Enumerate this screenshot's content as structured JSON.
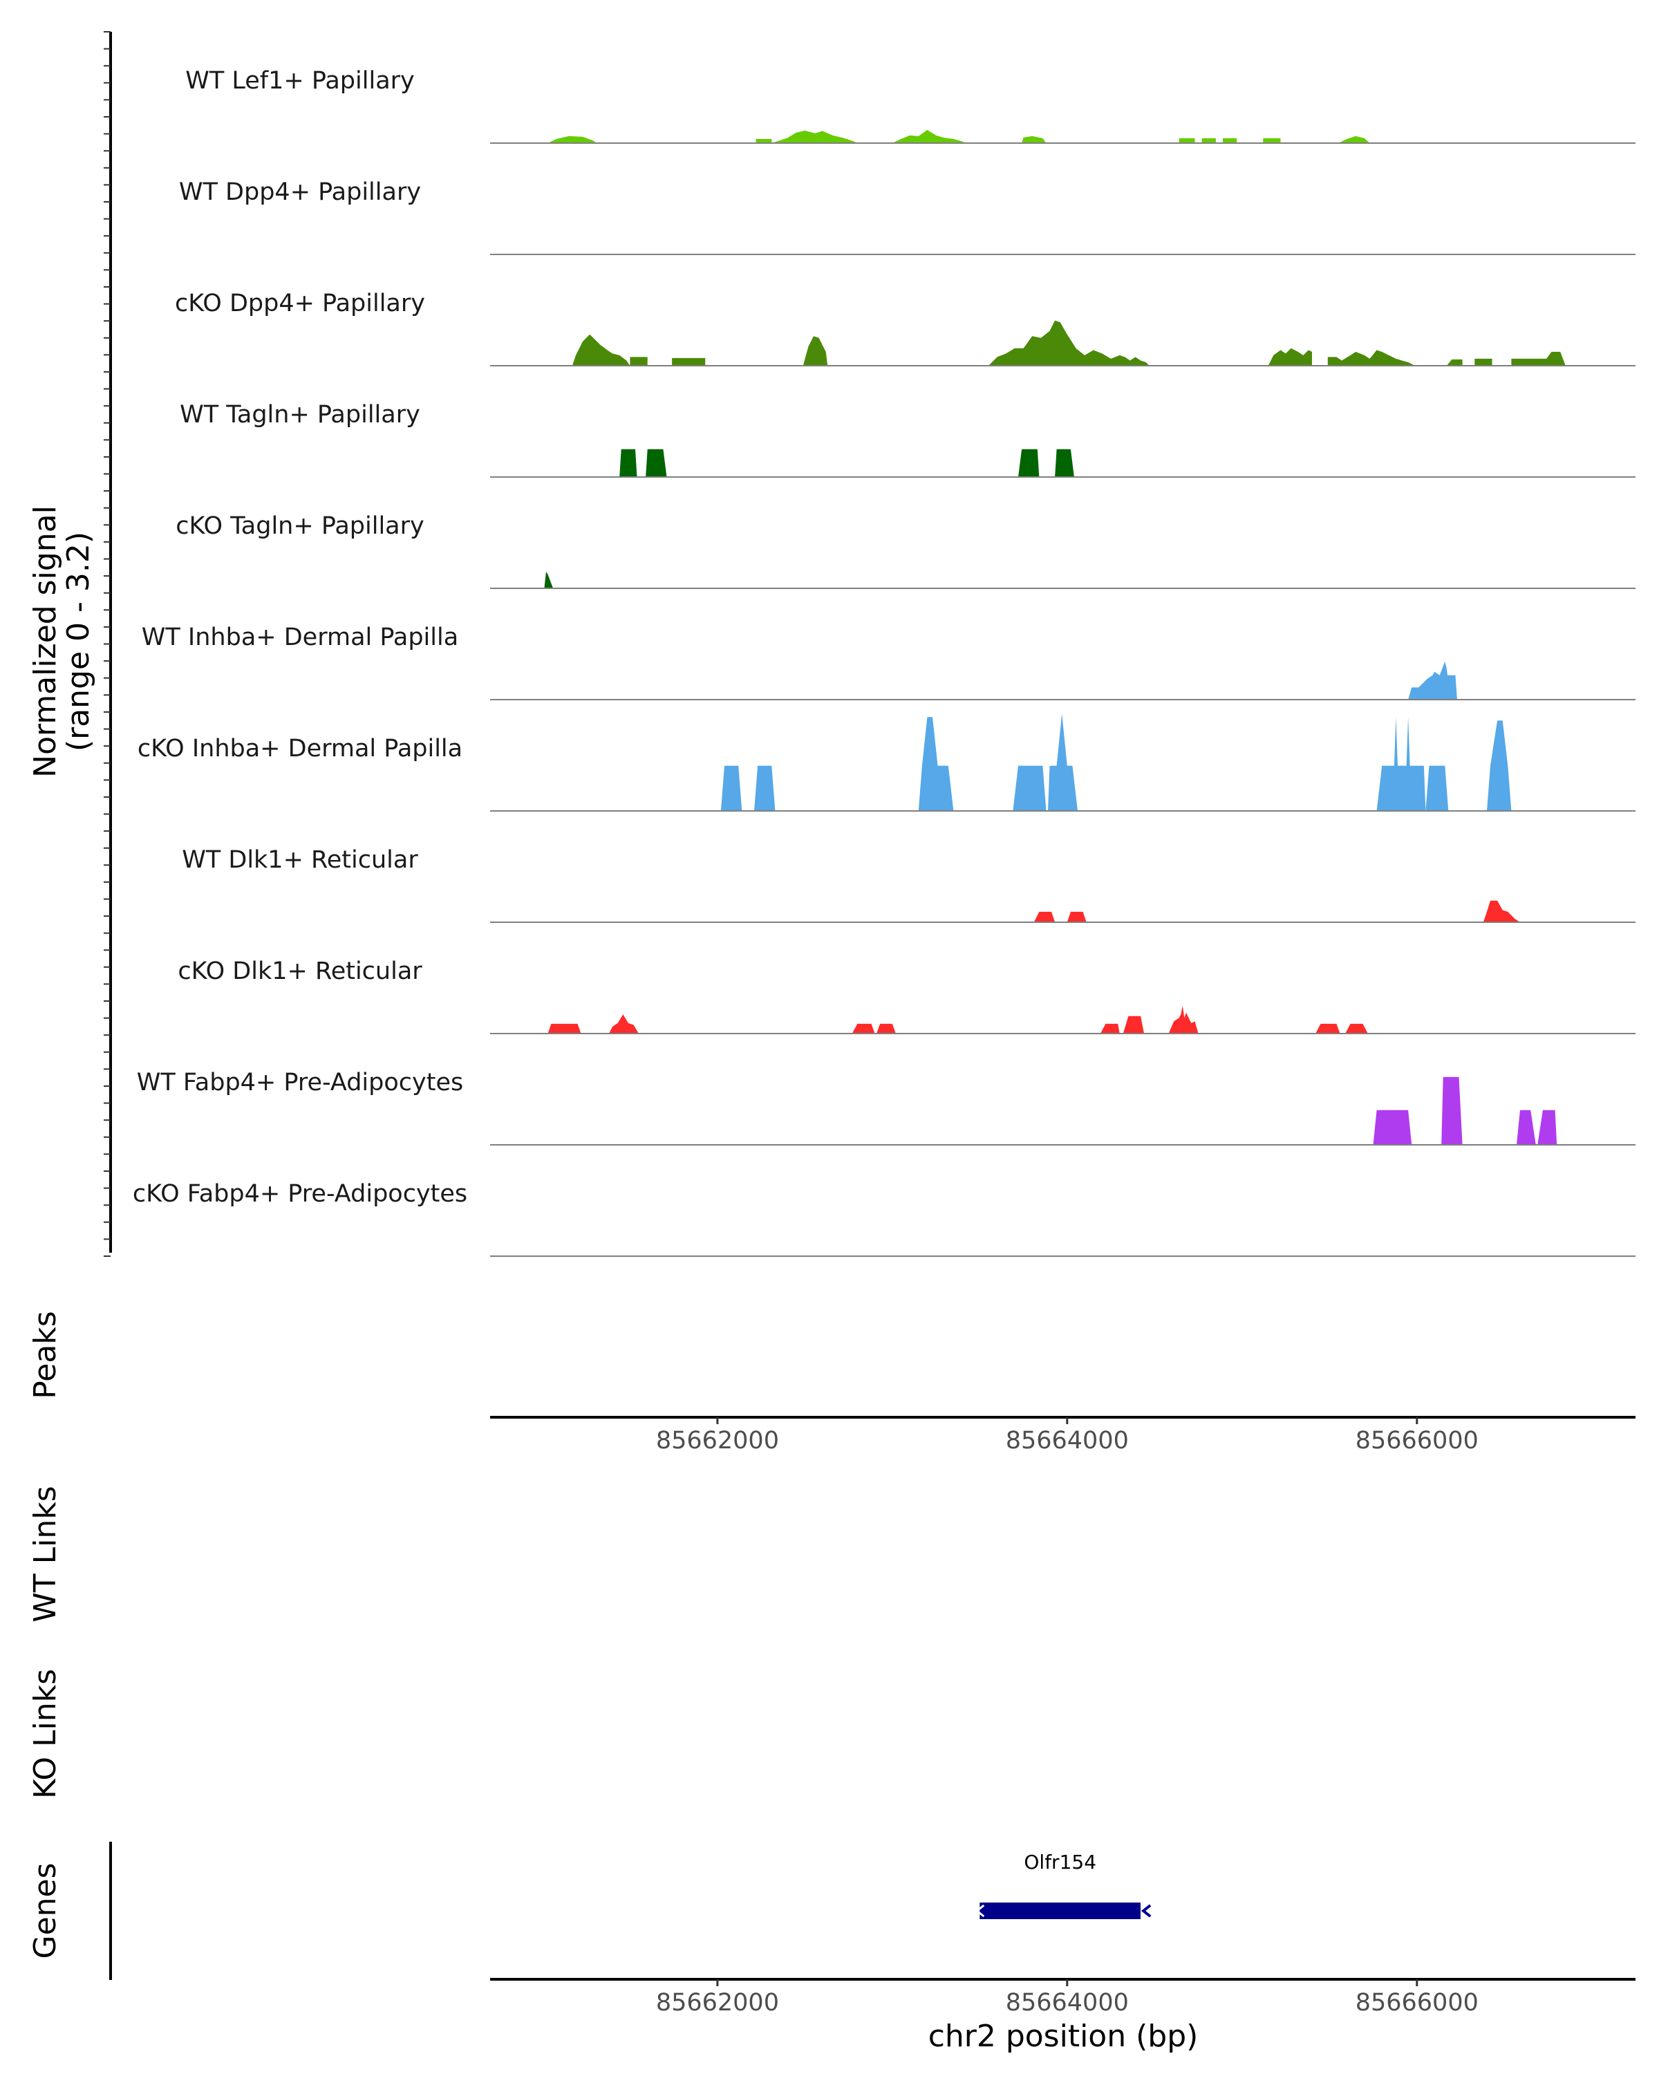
{
  "chart_data": {
    "type": "area",
    "ylabel_line1": "Normalized signal",
    "ylabel_line2": "(range 0 - 3.2)",
    "ylim": [
      0,
      3.2
    ],
    "xlim": [
      85660700,
      85667250
    ],
    "xlabel": "chr2 position (bp)",
    "x_ticks": [
      "85662000",
      "85664000",
      "85666000"
    ],
    "x_tick_values": [
      85662000,
      85664000,
      85666000
    ],
    "tracks": [
      {
        "name": "WT Lef1+ Papillary",
        "color": "#66cc00",
        "style": "smooth",
        "x": [
          85661030,
          85661080,
          85661150,
          85661230,
          85661290,
          85661310,
          85662220,
          85662220,
          85662310,
          85662310,
          85662340,
          85662400,
          85662450,
          85662500,
          85662560,
          85662600,
          85662660,
          85662720,
          85662780,
          85662800,
          85663000,
          85663050,
          85663100,
          85663150,
          85663200,
          85663250,
          85663300,
          85663350,
          85663400,
          85663420,
          85663740,
          85663750,
          85663800,
          85663860,
          85663880,
          85664640,
          85664640,
          85664730,
          85664730,
          85664770,
          85664770,
          85664850,
          85664850,
          85664890,
          85664890,
          85664970,
          85664970,
          85665120,
          85665120,
          85665220,
          85665220,
          85665550,
          85665600,
          85665650,
          85665700,
          85665730
        ],
        "y": [
          0,
          0.12,
          0.2,
          0.18,
          0.07,
          0,
          0,
          0.12,
          0.12,
          0,
          0.05,
          0.15,
          0.3,
          0.36,
          0.28,
          0.35,
          0.22,
          0.15,
          0.05,
          0,
          0,
          0.12,
          0.22,
          0.2,
          0.38,
          0.22,
          0.15,
          0.12,
          0.05,
          0,
          0,
          0.16,
          0.2,
          0.14,
          0,
          0,
          0.14,
          0.14,
          0,
          0,
          0.14,
          0.14,
          0,
          0,
          0.14,
          0.14,
          0,
          0,
          0.14,
          0.14,
          0,
          0,
          0.12,
          0.2,
          0.14,
          0
        ]
      },
      {
        "name": "WT Dpp4+ Papillary",
        "color": "#4f8a10",
        "style": "smooth",
        "x": [],
        "y": []
      },
      {
        "name": "cKO Dpp4+ Papillary",
        "color": "#4a8a08",
        "style": "smooth",
        "x": [
          85661170,
          85661190,
          85661230,
          85661270,
          85661300,
          85661330,
          85661370,
          85661400,
          85661440,
          85661480,
          85661500,
          85661500,
          85661600,
          85661600,
          85661740,
          85661740,
          85661930,
          85661930,
          85662490,
          85662520,
          85662550,
          85662580,
          85662620,
          85662630,
          85663550,
          85663600,
          85663650,
          85663700,
          85663750,
          85663800,
          85663850,
          85663900,
          85663930,
          85663960,
          85664000,
          85664050,
          85664100,
          85664150,
          85664200,
          85664250,
          85664300,
          85664330,
          85664360,
          85664390,
          85664420,
          85664450,
          85664470,
          85665150,
          85665180,
          85665220,
          85665250,
          85665280,
          85665320,
          85665350,
          85665380,
          85665400,
          85665400,
          85665490,
          85665490,
          85665540,
          85665570,
          85665620,
          85665650,
          85665700,
          85665730,
          85665770,
          85665800,
          85665840,
          85665880,
          85665950,
          85665990,
          85666170,
          85666200,
          85666260,
          85666260,
          85666330,
          85666330,
          85666430,
          85666430,
          85666540,
          85666540,
          85666740,
          85666770,
          85666820,
          85666850
        ],
        "y": [
          0,
          0.3,
          0.7,
          0.9,
          0.75,
          0.6,
          0.45,
          0.35,
          0.3,
          0.15,
          0,
          0.25,
          0.25,
          0,
          0,
          0.22,
          0.22,
          0,
          0,
          0.55,
          0.85,
          0.8,
          0.4,
          0,
          0,
          0.25,
          0.35,
          0.5,
          0.5,
          0.85,
          0.8,
          1.0,
          1.3,
          1.25,
          0.9,
          0.5,
          0.3,
          0.45,
          0.35,
          0.2,
          0.3,
          0.25,
          0.15,
          0.25,
          0.15,
          0.1,
          0,
          0,
          0.3,
          0.45,
          0.35,
          0.5,
          0.4,
          0.3,
          0.45,
          0.4,
          0,
          0,
          0.25,
          0.25,
          0.15,
          0.3,
          0.4,
          0.3,
          0.2,
          0.45,
          0.4,
          0.3,
          0.2,
          0.1,
          0,
          0,
          0.18,
          0.18,
          0,
          0,
          0.2,
          0.2,
          0,
          0,
          0.2,
          0.2,
          0.4,
          0.4,
          0
        ]
      },
      {
        "name": "WT Tagln+ Papillary",
        "color": "#006400",
        "style": "block",
        "x": [
          85661440,
          85661450,
          85661530,
          85661540,
          85661590,
          85661600,
          85661690,
          85661710,
          85663720,
          85663740,
          85663830,
          85663840,
          85663930,
          85663940,
          85664020,
          85664040
        ],
        "y": [
          0,
          0.8,
          0.8,
          0,
          0,
          0.8,
          0.8,
          0,
          0,
          0.8,
          0.8,
          0,
          0,
          0.8,
          0.8,
          0
        ]
      },
      {
        "name": "cKO Tagln+ Papillary",
        "color": "#006400",
        "style": "block",
        "x": [
          85661010,
          85661020,
          85661030,
          85661060
        ],
        "y": [
          0,
          0.48,
          0.4,
          0
        ]
      },
      {
        "name": "WT Inhba+ Dermal Papilla",
        "color": "#56a8e8",
        "style": "smooth",
        "x": [
          85665950,
          85665970,
          85666010,
          85666040,
          85666060,
          85666090,
          85666100,
          85666130,
          85666160,
          85666170,
          85666175,
          85666220,
          85666230
        ],
        "y": [
          0,
          0.35,
          0.35,
          0.5,
          0.6,
          0.7,
          0.8,
          0.7,
          1.1,
          0.9,
          0.7,
          0.7,
          0
        ]
      },
      {
        "name": "cKO Inhba+ Dermal Papilla",
        "color": "#56a8e8",
        "style": "block",
        "x": [
          85662020,
          85662040,
          85662120,
          85662140,
          85662210,
          85662230,
          85662310,
          85662330,
          85663150,
          85663170,
          85663200,
          85663230,
          85663260,
          85663320,
          85663350,
          85663690,
          85663720,
          85663860,
          85663880,
          85663890,
          85663900,
          85663940,
          85663970,
          85664000,
          85664030,
          85664060,
          85665770,
          85665800,
          85665870,
          85665880,
          85665890,
          85665940,
          85665950,
          85665960,
          85665970,
          85666040,
          85666050,
          85666070,
          85666160,
          85666180,
          85666400,
          85666420,
          85666460,
          85666490,
          85666520,
          85666540
        ],
        "y": [
          0,
          1.3,
          1.3,
          0,
          0,
          1.3,
          1.3,
          0,
          0,
          1.3,
          2.7,
          2.7,
          1.3,
          1.3,
          0,
          0,
          1.3,
          1.3,
          0,
          0,
          1.3,
          1.3,
          2.8,
          1.3,
          1.3,
          0,
          0,
          1.3,
          1.3,
          2.7,
          1.3,
          1.3,
          2.7,
          1.3,
          1.3,
          1.3,
          0,
          1.3,
          1.3,
          0,
          0,
          1.3,
          2.6,
          2.6,
          1.3,
          0
        ]
      },
      {
        "name": "WT Dlk1+ Reticular",
        "color": "#ff2a2a",
        "style": "block",
        "x": [
          85663810,
          85663840,
          85663910,
          85663930,
          85664000,
          85664020,
          85664090,
          85664110,
          85666380,
          85666400,
          85666420,
          85666460,
          85666490,
          85666520,
          85666560,
          85666590
        ],
        "y": [
          0,
          0.3,
          0.3,
          0,
          0,
          0.3,
          0.3,
          0,
          0,
          0.3,
          0.62,
          0.62,
          0.35,
          0.3,
          0.1,
          0
        ]
      },
      {
        "name": "cKO Dlk1+ Reticular",
        "color": "#ff2a2a",
        "style": "block",
        "x": [
          85661030,
          85661050,
          85661200,
          85661220,
          85661380,
          85661400,
          85661430,
          85661460,
          85661490,
          85661520,
          85661550,
          85662770,
          85662800,
          85662880,
          85662900,
          85662910,
          85662930,
          85663000,
          85663020,
          85664190,
          85664220,
          85664290,
          85664300,
          85664320,
          85664350,
          85664420,
          85664440,
          85664580,
          85664610,
          85664640,
          85664650,
          85664660,
          85664670,
          85664680,
          85664710,
          85664730,
          85664750,
          85665420,
          85665450,
          85665540,
          85665560,
          85665590,
          85665620,
          85665690,
          85665720
        ],
        "y": [
          0,
          0.28,
          0.28,
          0,
          0,
          0.2,
          0.3,
          0.55,
          0.3,
          0.25,
          0,
          0,
          0.28,
          0.28,
          0,
          0,
          0.28,
          0.28,
          0,
          0,
          0.28,
          0.28,
          0,
          0,
          0.5,
          0.5,
          0,
          0,
          0.35,
          0.45,
          0.55,
          0.8,
          0.45,
          0.6,
          0.3,
          0.35,
          0,
          0,
          0.28,
          0.28,
          0,
          0,
          0.28,
          0.28,
          0
        ]
      },
      {
        "name": "WT Fabp4+ Pre-Adipocytes",
        "color": "#b03cf0",
        "style": "block",
        "x": [
          85665750,
          85665770,
          85665950,
          85665970,
          85666140,
          85666150,
          85666240,
          85666260,
          85666570,
          85666590,
          85666650,
          85666680,
          85666690,
          85666720,
          85666790,
          85666800
        ],
        "y": [
          0,
          1.0,
          1.0,
          0,
          0,
          1.95,
          1.95,
          0,
          0,
          1.0,
          1.0,
          0,
          0,
          1.0,
          1.0,
          0
        ]
      },
      {
        "name": "cKO Fabp4+ Pre-Adipocytes",
        "color": "#b03cf0",
        "style": "block",
        "x": [],
        "y": []
      }
    ],
    "side_titles": [
      "Peaks",
      "WT Links",
      "KO Links",
      "Genes"
    ],
    "gene": {
      "name": "Olfr154",
      "start": 85663500,
      "end": 85664420,
      "color": "#00008b",
      "strand": "-"
    }
  }
}
